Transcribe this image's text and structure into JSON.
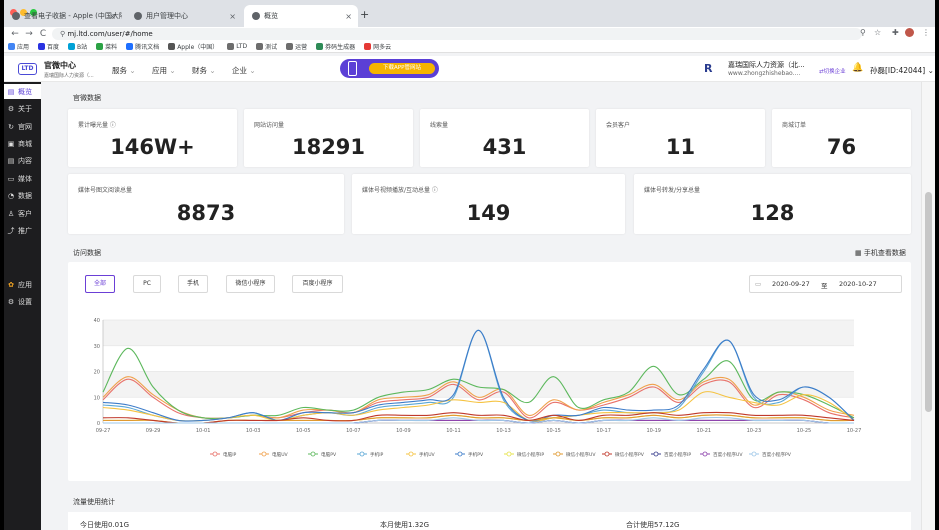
{
  "browser": {
    "tabs": [
      {
        "title": "查看电子收据 - Apple (中国大陆)"
      },
      {
        "title": "用户管理中心"
      },
      {
        "title": "概览"
      }
    ],
    "url": "mj.ltd.com/user/#/home",
    "bookmarks": [
      "应用",
      "百度",
      "B站",
      "菜料",
      "腾讯文档",
      "Apple（中国）",
      "LTD",
      "测试",
      "运营",
      "券码生成器",
      "网多云"
    ]
  },
  "header": {
    "logo": "LTD",
    "title": "官微中心",
    "subtitle": "嘉瑞国际人力资源（...",
    "nav": [
      "服务",
      "应用",
      "财务",
      "企业"
    ],
    "promo_label": "下载APP管网站",
    "company_mark": "R",
    "company_name": "嘉瑞国际人力资源（北...",
    "company_url": "www.zhongzhishebao....",
    "switch_label": "切换企业",
    "user": "孙磊[ID:42044]"
  },
  "sidebar": {
    "items": [
      {
        "label": "概览",
        "icon": "overview-icon"
      },
      {
        "label": "关于",
        "icon": "gear-icon"
      },
      {
        "label": "官网",
        "icon": "refresh-icon"
      },
      {
        "label": "商城",
        "icon": "shop-icon"
      },
      {
        "label": "内容",
        "icon": "doc-icon"
      },
      {
        "label": "媒体",
        "icon": "video-icon"
      },
      {
        "label": "数据",
        "icon": "clock-icon"
      },
      {
        "label": "客户",
        "icon": "user-icon"
      },
      {
        "label": "推广",
        "icon": "share-icon"
      },
      {
        "label": "应用",
        "icon": "apps-icon"
      },
      {
        "label": "设置",
        "icon": "settings-icon"
      }
    ]
  },
  "official": {
    "title": "官微数据",
    "row1": [
      {
        "label": "累计曝光量 ⓘ",
        "value": "146W+"
      },
      {
        "label": "网站访问量",
        "value": "18291"
      },
      {
        "label": "线索量",
        "value": "431"
      },
      {
        "label": "会员客户",
        "value": "11"
      },
      {
        "label": "商城订单",
        "value": "76"
      }
    ],
    "row2": [
      {
        "label": "媒体号图文阅读总量",
        "value": "8873"
      },
      {
        "label": "媒体号视频播放/互动总量 ⓘ",
        "value": "149"
      },
      {
        "label": "媒体号转发/分享总量",
        "value": "128"
      }
    ]
  },
  "visits": {
    "title": "访问数据",
    "mobile_link": "手机查看数据",
    "filters": [
      "全部",
      "PC",
      "手机",
      "微信小程序",
      "百度小程序"
    ],
    "date_start": "2020-09-27",
    "date_sep": "至",
    "date_end": "2020-10-27"
  },
  "traffic": {
    "title": "流量使用统计",
    "today": "今日使用0.01G",
    "month": "本月使用1.32G",
    "total": "合计使用57.12G"
  },
  "chart_data": {
    "type": "line",
    "ylim": [
      0,
      40
    ],
    "yticks": [
      0,
      10,
      20,
      30,
      40
    ],
    "x": [
      "09-27",
      "09-28",
      "09-29",
      "09-30",
      "10-01",
      "10-02",
      "10-03",
      "10-04",
      "10-05",
      "10-06",
      "10-07",
      "10-08",
      "10-09",
      "10-10",
      "10-11",
      "10-12",
      "10-13",
      "10-14",
      "10-15",
      "10-16",
      "10-17",
      "10-18",
      "10-19",
      "10-20",
      "10-21",
      "10-22",
      "10-23",
      "10-24",
      "10-25",
      "10-26",
      "10-27"
    ],
    "xticks": [
      "09-27",
      "09-29",
      "10-01",
      "10-03",
      "10-05",
      "10-07",
      "10-09",
      "10-11",
      "10-13",
      "10-15",
      "10-17",
      "10-19",
      "10-21",
      "10-23",
      "10-25",
      "10-27"
    ],
    "series": [
      {
        "name": "电脑IP",
        "color": "#e8726a",
        "values": [
          9,
          17,
          10,
          4,
          2,
          2,
          3,
          2,
          4,
          5,
          4,
          8,
          9,
          10,
          15,
          9,
          12,
          2,
          8,
          5,
          7,
          10,
          14,
          8,
          15,
          16,
          6,
          11,
          9,
          4,
          2
        ]
      },
      {
        "name": "电脑UV",
        "color": "#f0a04b",
        "values": [
          10,
          18,
          11,
          5,
          2,
          2,
          3,
          2,
          5,
          5,
          4,
          9,
          10,
          11,
          16,
          10,
          13,
          3,
          9,
          5,
          8,
          11,
          15,
          9,
          16,
          17,
          7,
          12,
          10,
          5,
          3
        ]
      },
      {
        "name": "电脑PV",
        "color": "#5cb85c",
        "values": [
          12,
          29,
          14,
          5,
          2,
          2,
          3,
          3,
          6,
          5,
          5,
          10,
          12,
          13,
          17,
          14,
          13,
          8,
          18,
          6,
          9,
          12,
          22,
          11,
          17,
          24,
          9,
          12,
          11,
          7,
          2
        ]
      },
      {
        "name": "手机IP",
        "color": "#5aa7d6",
        "values": [
          7,
          6,
          3,
          1,
          1,
          2,
          4,
          1,
          3,
          4,
          3,
          6,
          7,
          8,
          10,
          36,
          9,
          1,
          2,
          3,
          5,
          4,
          4,
          6,
          20,
          32,
          10,
          8,
          14,
          10,
          1
        ]
      },
      {
        "name": "手机UV",
        "color": "#f5c342",
        "values": [
          6,
          5,
          3,
          1,
          1,
          2,
          3,
          1,
          3,
          4,
          3,
          5,
          6,
          7,
          9,
          8,
          8,
          1,
          2,
          3,
          4,
          4,
          4,
          5,
          12,
          10,
          8,
          7,
          11,
          8,
          1
        ]
      },
      {
        "name": "手机PV",
        "color": "#3d7cc9",
        "values": [
          8,
          7,
          4,
          1,
          1,
          2,
          4,
          1,
          4,
          4,
          4,
          7,
          8,
          9,
          11,
          36,
          10,
          1,
          3,
          3,
          6,
          5,
          5,
          7,
          21,
          32,
          11,
          9,
          14,
          10,
          1
        ]
      },
      {
        "name": "微信小程序IP",
        "color": "#e6e34a",
        "values": [
          1,
          1,
          1,
          0,
          0,
          1,
          1,
          1,
          1,
          1,
          1,
          2,
          2,
          2,
          3,
          2,
          2,
          1,
          2,
          1,
          2,
          2,
          3,
          2,
          3,
          3,
          2,
          2,
          2,
          1,
          1
        ]
      },
      {
        "name": "微信小程序UV",
        "color": "#e09a30",
        "values": [
          1,
          1,
          1,
          0,
          0,
          1,
          1,
          1,
          1,
          1,
          1,
          2,
          2,
          2,
          3,
          2,
          2,
          1,
          2,
          1,
          2,
          2,
          3,
          2,
          3,
          3,
          2,
          2,
          2,
          1,
          1
        ]
      },
      {
        "name": "微信小程序PV",
        "color": "#c0392b",
        "values": [
          2,
          2,
          1,
          0,
          0,
          1,
          1,
          1,
          2,
          1,
          1,
          3,
          3,
          3,
          4,
          3,
          3,
          1,
          3,
          1,
          3,
          3,
          4,
          3,
          4,
          4,
          3,
          3,
          3,
          2,
          1
        ]
      },
      {
        "name": "百度小程序IP",
        "color": "#3a3f8f",
        "values": [
          0,
          0,
          0,
          0,
          0,
          0,
          0,
          0,
          0,
          0,
          0,
          1,
          1,
          1,
          1,
          1,
          1,
          0,
          1,
          0,
          1,
          1,
          1,
          1,
          1,
          1,
          1,
          1,
          1,
          0,
          0
        ]
      },
      {
        "name": "百度小程序UV",
        "color": "#8e44ad",
        "values": [
          0,
          0,
          0,
          0,
          0,
          0,
          0,
          0,
          0,
          0,
          0,
          1,
          1,
          1,
          1,
          1,
          1,
          0,
          1,
          0,
          1,
          1,
          1,
          1,
          1,
          1,
          1,
          1,
          1,
          0,
          0
        ]
      },
      {
        "name": "百度小程序PV",
        "color": "#9ec7e8",
        "values": [
          0,
          0,
          0,
          0,
          0,
          0,
          0,
          0,
          0,
          0,
          0,
          1,
          1,
          1,
          2,
          1,
          1,
          0,
          1,
          0,
          1,
          1,
          2,
          1,
          2,
          2,
          1,
          1,
          1,
          0,
          0
        ]
      }
    ]
  }
}
